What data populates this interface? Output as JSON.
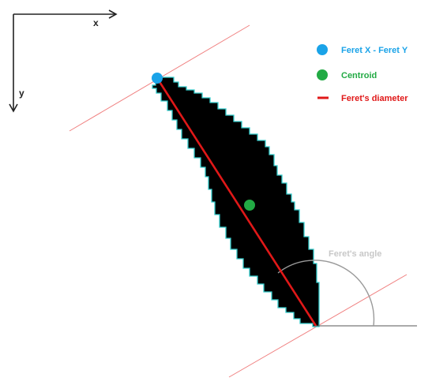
{
  "axes": {
    "x_label": "x",
    "y_label": "y"
  },
  "legend": {
    "items": [
      {
        "label": "Feret X  - Feret Y",
        "color": "#1aa3e8",
        "marker": "dot"
      },
      {
        "label": "Centroid",
        "color": "#22aa44",
        "marker": "dot"
      },
      {
        "label": "Feret's diameter",
        "color": "#e01818",
        "marker": "line"
      }
    ]
  },
  "annotations": {
    "angle_label": "Feret's angle",
    "angle_label_color": "#c8c8c8"
  },
  "colors": {
    "shape_fill": "#000000",
    "shape_outline": "#33cccc",
    "caliper_line": "#f08080",
    "diameter": "#e01818",
    "arc": "#9a9a9a",
    "baseline": "#555555"
  }
}
